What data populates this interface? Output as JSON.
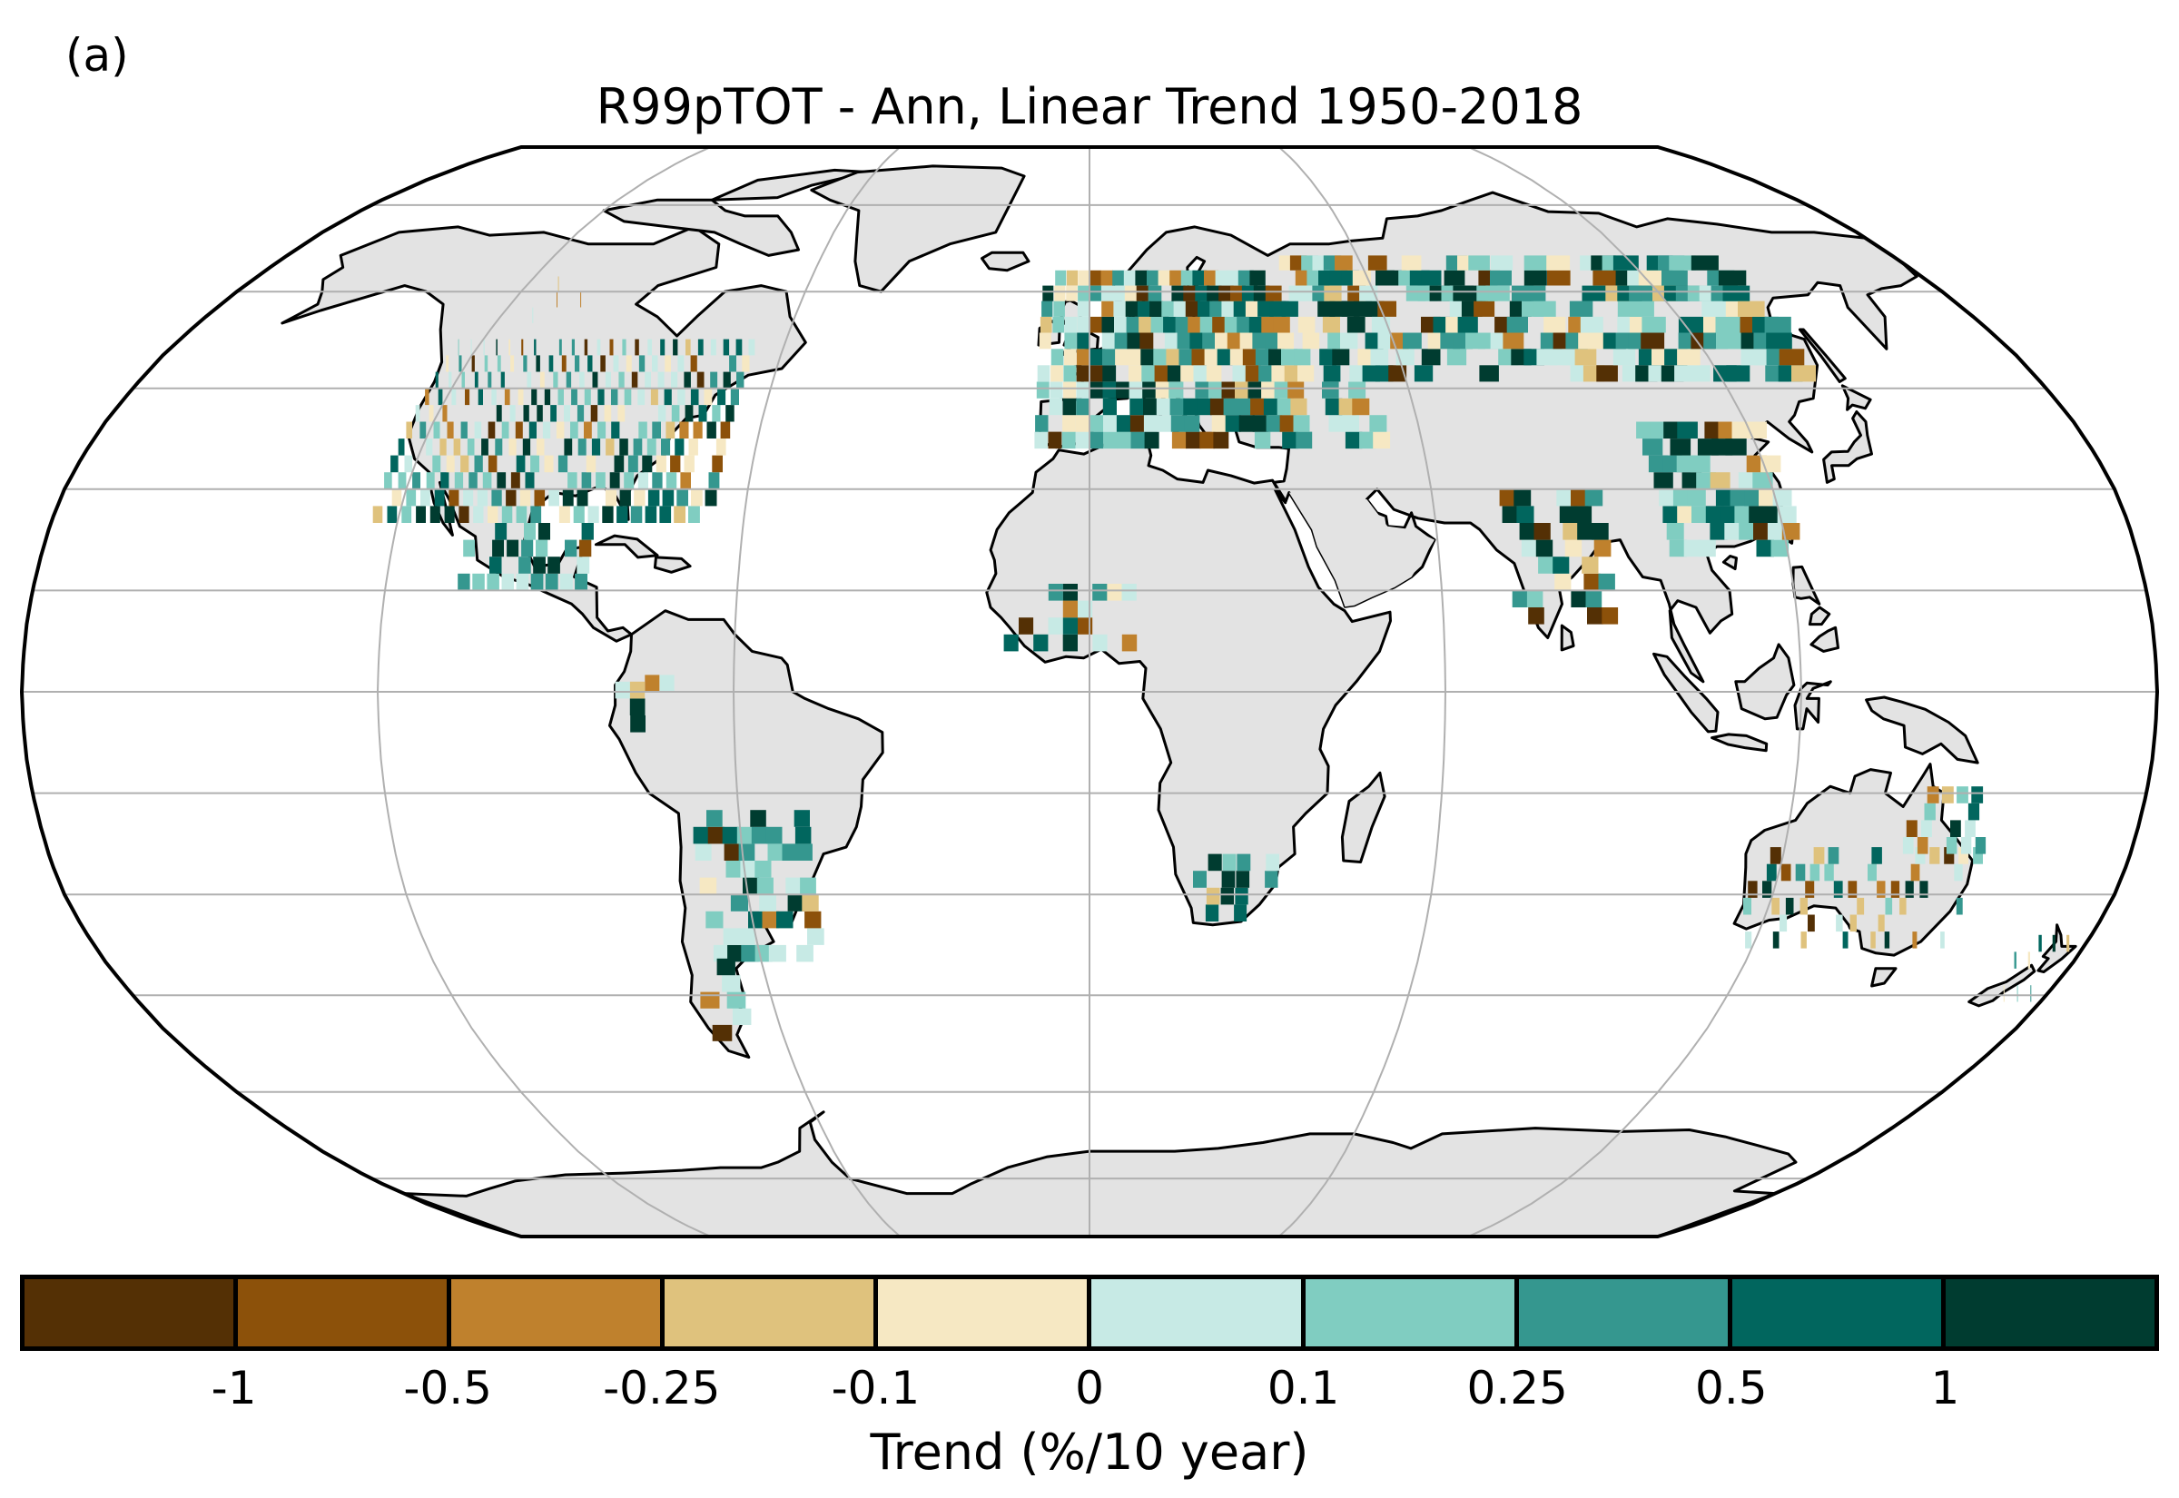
{
  "panel_label": "(a)",
  "title": "R99pTOT - Ann, Linear Trend 1950-2018",
  "colorbar": {
    "label": "Trend (%/10 year)",
    "ticks": [
      "-1",
      "-0.5",
      "-0.25",
      "-0.1",
      "0",
      "0.1",
      "0.25",
      "0.5",
      "1"
    ],
    "colors": [
      "#543005",
      "#8c510a",
      "#bf812d",
      "#dfc27d",
      "#f6e8c3",
      "#c7eae5",
      "#80cdc1",
      "#35978f",
      "#01665e",
      "#003c30"
    ]
  },
  "map": {
    "projection": "Robinson",
    "land_color": "#e3e3e3",
    "coastline_color": "#000000",
    "gridline_color": "#b0b0b0",
    "lat_lines_deg": [
      -75,
      -60,
      -45,
      -30,
      -15,
      0,
      15,
      30,
      45,
      60,
      75
    ],
    "lon_lines_deg": [
      -120,
      -60,
      0,
      60,
      120
    ]
  }
}
